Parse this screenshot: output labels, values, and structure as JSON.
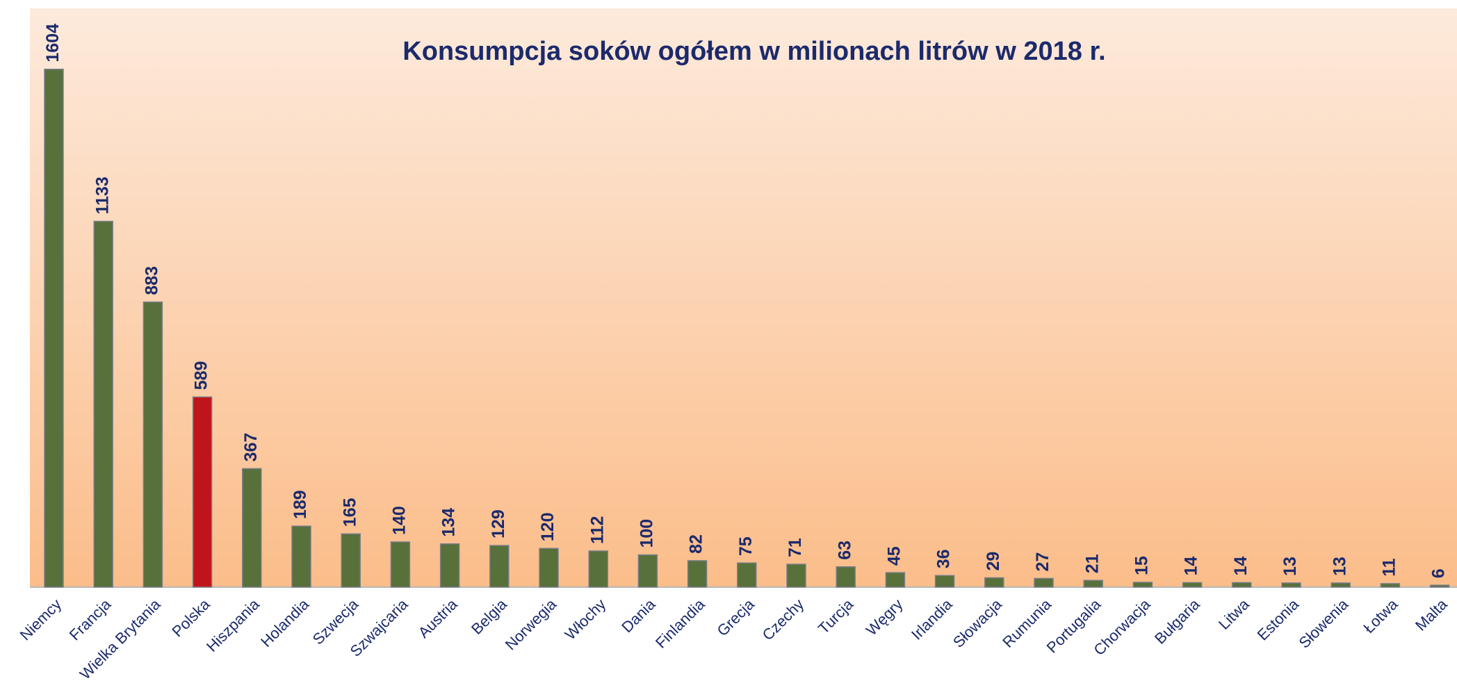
{
  "chart_data": {
    "type": "bar",
    "title": "Konsumpcja soków ogółem w milionach litrów w 2018 r.",
    "categories": [
      "Niemcy",
      "Francja",
      "Wielka Brytania",
      "Polska",
      "Hiszpania",
      "Holandia",
      "Szwecja",
      "Szwajcaria",
      "Austria",
      "Belgia",
      "Norwegia",
      "Włochy",
      "Dania",
      "Finlandia",
      "Grecja",
      "Czechy",
      "Turcja",
      "Węgry",
      "Irlandia",
      "Słowacja",
      "Rumunia",
      "Portugalia",
      "Chorwacja",
      "Bułgaria",
      "Litwa",
      "Estonia",
      "Słowenia",
      "Łotwa",
      "Malta"
    ],
    "values": [
      1604,
      1133,
      883,
      589,
      367,
      189,
      165,
      140,
      134,
      129,
      120,
      112,
      100,
      82,
      75,
      71,
      63,
      45,
      36,
      29,
      27,
      21,
      15,
      14,
      14,
      13,
      13,
      11,
      6
    ],
    "colors": [
      "#58703a",
      "#58703a",
      "#58703a",
      "#c0141c",
      "#58703a",
      "#58703a",
      "#58703a",
      "#58703a",
      "#58703a",
      "#58703a",
      "#58703a",
      "#58703a",
      "#58703a",
      "#58703a",
      "#58703a",
      "#58703a",
      "#58703a",
      "#58703a",
      "#58703a",
      "#58703a",
      "#58703a",
      "#58703a",
      "#58703a",
      "#58703a",
      "#58703a",
      "#58703a",
      "#58703a",
      "#58703a",
      "#58703a"
    ],
    "ylim": [
      0,
      1700
    ]
  }
}
